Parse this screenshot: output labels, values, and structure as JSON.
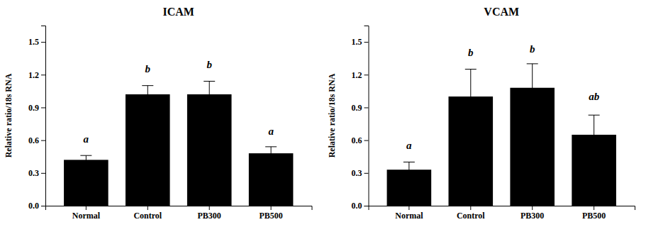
{
  "chart_data": [
    {
      "type": "bar",
      "title": "ICAM",
      "categories": [
        "Normal",
        "Control",
        "PB300",
        "PB500"
      ],
      "values": [
        0.42,
        1.02,
        1.02,
        0.48
      ],
      "errors": [
        0.04,
        0.08,
        0.12,
        0.06
      ],
      "color": "#000000",
      "ylabel": "Relative ratio/18s RNA",
      "ylim": [
        0,
        1.65
      ],
      "yticks": [
        {
          "value": 0.0,
          "label": "0.0"
        },
        0.3,
        0.6,
        0.9,
        1.2,
        1.5
      ],
      "grid": false,
      "annotations": [
        {
          "text": "a",
          "x": "Normal",
          "y": 0.58
        },
        {
          "text": "b",
          "x": "Control",
          "y": 1.22
        },
        {
          "text": "b",
          "x": "PB300",
          "y": 1.26
        },
        {
          "text": "a",
          "x": "PB500",
          "y": 0.65
        }
      ]
    },
    {
      "type": "bar",
      "title": "VCAM",
      "categories": [
        "Normal",
        "Control",
        "PB300",
        "PB500"
      ],
      "values": [
        0.33,
        1.0,
        1.08,
        0.65
      ],
      "errors": [
        0.07,
        0.25,
        0.22,
        0.18
      ],
      "color": "#000000",
      "ylabel": "Relative ratio/18s RNA",
      "ylim": [
        0,
        1.65
      ],
      "yticks": [
        {
          "value": 0.0,
          "label": "0.0"
        },
        0.3,
        0.6,
        0.9,
        1.2,
        1.5
      ],
      "grid": false,
      "annotations": [
        {
          "text": "a",
          "x": "Normal",
          "y": 0.52
        },
        {
          "text": "b",
          "x": "Control",
          "y": 1.37
        },
        {
          "text": "b",
          "x": "PB300",
          "y": 1.4
        },
        {
          "text": "ab",
          "x": "PB500",
          "y": 0.97
        }
      ]
    }
  ]
}
